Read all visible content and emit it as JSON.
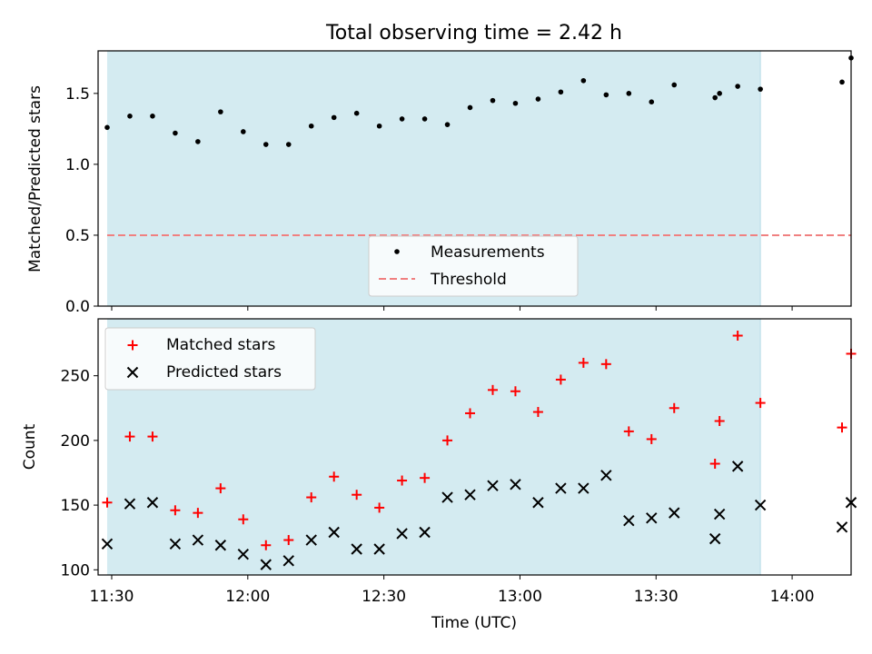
{
  "chart_data": [
    {
      "type": "scatter",
      "title": "Total observing time = 2.42 h",
      "xlabel": "",
      "ylabel": "Matched/Predicted stars",
      "x_unit": "time (UTC)",
      "xlim": [
        "11:27",
        "14:13"
      ],
      "ylim": [
        0,
        1.8
      ],
      "yticks": [
        0.0,
        0.5,
        1.0,
        1.5
      ],
      "ytick_labels": [
        "0.0",
        "0.5",
        "1.0",
        "1.5"
      ],
      "shaded_interval": [
        "11:29",
        "13:53"
      ],
      "legend_position": "lower center",
      "series": [
        {
          "name": "Measurements",
          "marker": "dot",
          "color": "#000000",
          "x": [
            "11:29",
            "11:34",
            "11:39",
            "11:44",
            "11:49",
            "11:54",
            "11:59",
            "12:04",
            "12:09",
            "12:14",
            "12:19",
            "12:24",
            "12:29",
            "12:34",
            "12:39",
            "12:44",
            "12:49",
            "12:54",
            "12:59",
            "13:04",
            "13:09",
            "13:14",
            "13:19",
            "13:24",
            "13:29",
            "13:34",
            "13:43",
            "13:44",
            "13:48",
            "13:53",
            "14:11",
            "14:13"
          ],
          "y": [
            1.26,
            1.34,
            1.34,
            1.22,
            1.16,
            1.37,
            1.23,
            1.14,
            1.14,
            1.27,
            1.33,
            1.36,
            1.27,
            1.32,
            1.32,
            1.28,
            1.4,
            1.45,
            1.43,
            1.46,
            1.51,
            1.59,
            1.49,
            1.5,
            1.44,
            1.56,
            1.47,
            1.5,
            1.55,
            1.53,
            1.58,
            1.75
          ]
        },
        {
          "name": "Threshold",
          "style": "dashed",
          "color": "#f08080",
          "x": [
            "11:29",
            "14:13"
          ],
          "y": [
            0.5,
            0.5
          ]
        }
      ]
    },
    {
      "type": "scatter",
      "title": "",
      "xlabel": "Time (UTC)",
      "ylabel": "Count",
      "xlim": [
        "11:27",
        "14:13"
      ],
      "xticks": [
        "11:30",
        "12:00",
        "12:30",
        "13:00",
        "13:30",
        "14:00"
      ],
      "ylim": [
        96,
        294
      ],
      "yticks": [
        100,
        150,
        200,
        250
      ],
      "ytick_labels": [
        "100",
        "150",
        "200",
        "250"
      ],
      "shaded_interval": [
        "11:29",
        "13:53"
      ],
      "legend_position": "upper left",
      "series": [
        {
          "name": "Matched stars",
          "marker": "plus",
          "color": "#ff0000",
          "x": [
            "11:29",
            "11:34",
            "11:39",
            "11:44",
            "11:49",
            "11:54",
            "11:59",
            "12:04",
            "12:09",
            "12:14",
            "12:19",
            "12:24",
            "12:29",
            "12:34",
            "12:39",
            "12:44",
            "12:49",
            "12:54",
            "12:59",
            "13:04",
            "13:09",
            "13:14",
            "13:19",
            "13:24",
            "13:29",
            "13:34",
            "13:43",
            "13:44",
            "13:48",
            "13:53",
            "14:11",
            "14:13"
          ],
          "y": [
            152,
            203,
            203,
            146,
            144,
            163,
            139,
            119,
            123,
            156,
            172,
            158,
            148,
            169,
            171,
            200,
            221,
            239,
            238,
            222,
            247,
            260,
            259,
            207,
            201,
            225,
            182,
            215,
            281,
            229,
            210,
            267
          ]
        },
        {
          "name": "Predicted stars",
          "marker": "x",
          "color": "#000000",
          "x": [
            "11:29",
            "11:34",
            "11:39",
            "11:44",
            "11:49",
            "11:54",
            "11:59",
            "12:04",
            "12:09",
            "12:14",
            "12:19",
            "12:24",
            "12:29",
            "12:34",
            "12:39",
            "12:44",
            "12:49",
            "12:54",
            "12:59",
            "13:04",
            "13:09",
            "13:14",
            "13:19",
            "13:24",
            "13:29",
            "13:34",
            "13:43",
            "13:44",
            "13:48",
            "13:53",
            "14:11",
            "14:13"
          ],
          "y": [
            120,
            151,
            152,
            120,
            123,
            119,
            112,
            104,
            107,
            123,
            129,
            116,
            116,
            128,
            129,
            156,
            158,
            165,
            166,
            152,
            163,
            163,
            173,
            138,
            140,
            144,
            124,
            143,
            180,
            150,
            133,
            152
          ]
        }
      ]
    }
  ],
  "colors": {
    "shade": "#d4ebf1",
    "matched": "#ff0000",
    "predicted": "#000000",
    "measurement": "#000000",
    "threshold": "#f08080"
  }
}
